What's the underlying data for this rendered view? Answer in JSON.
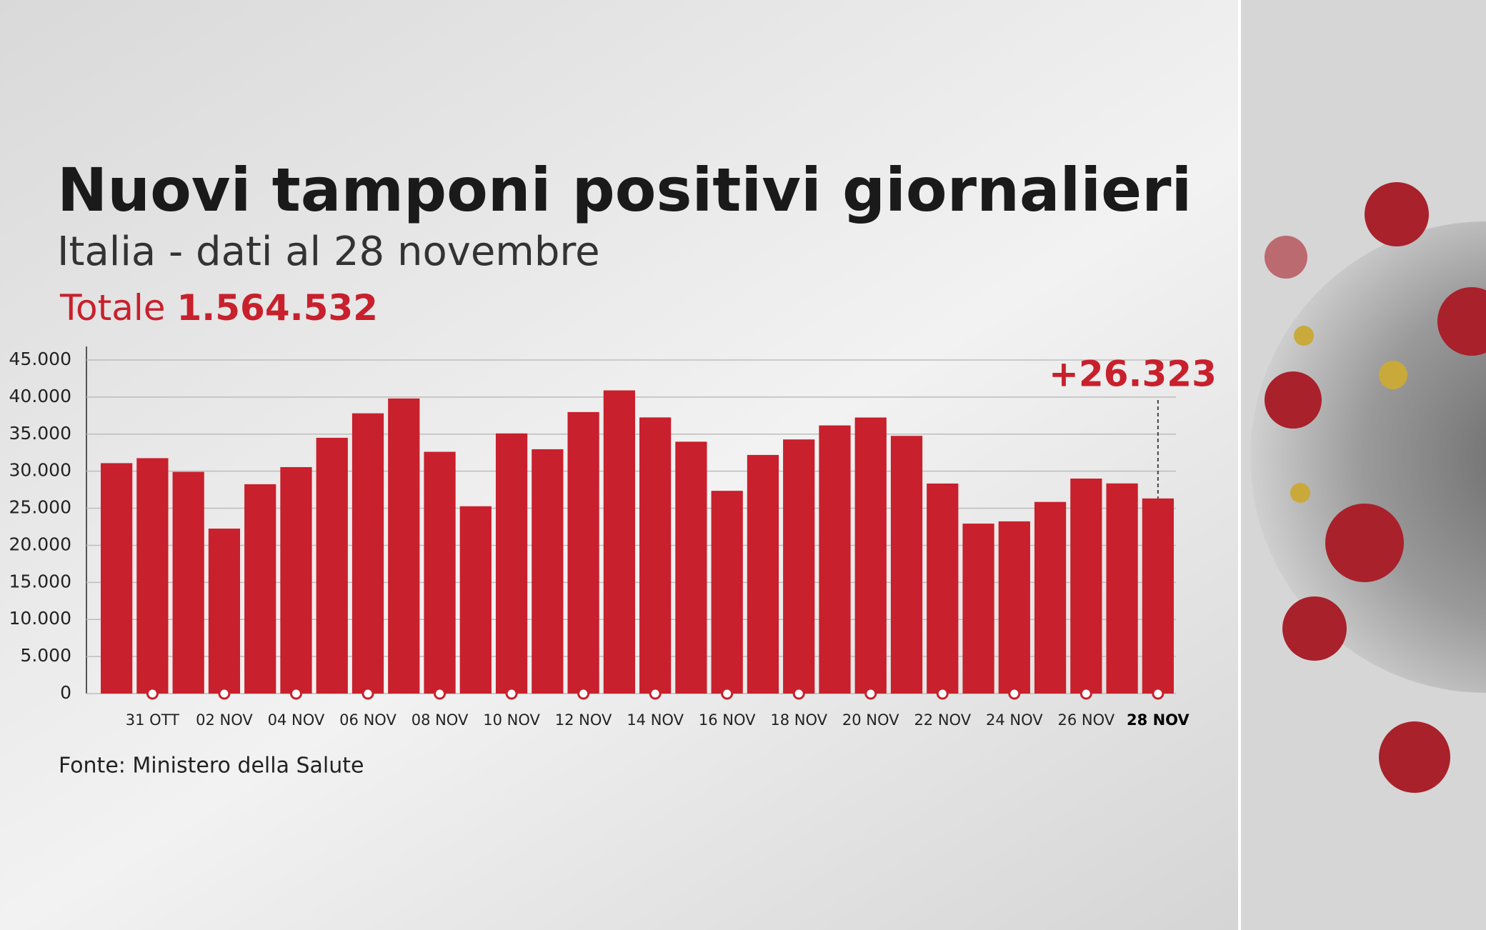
{
  "chart_data": {
    "type": "bar",
    "title": "Nuovi tamponi positivi giornalieri",
    "subtitle": "Italia - dati al 28 novembre",
    "total_label": "Totale",
    "total_value": "1.564.532",
    "source": "Fonte: Ministero della Salute",
    "annotation": "+26.323",
    "categories": [
      null,
      "31 OTT",
      null,
      "02 NOV",
      null,
      "04 NOV",
      null,
      "06 NOV",
      null,
      "08 NOV",
      null,
      "10 NOV",
      null,
      "12 NOV",
      null,
      "14 NOV",
      null,
      "16 NOV",
      null,
      "18 NOV",
      null,
      "20 NOV",
      null,
      "22 NOV",
      null,
      "24 NOV",
      null,
      "26 NOV",
      null,
      "28 NOV"
    ],
    "values": [
      31084,
      31758,
      29907,
      22253,
      28244,
      30550,
      34505,
      37809,
      39811,
      32616,
      25271,
      35098,
      32961,
      37978,
      40902,
      37255,
      33979,
      27354,
      32191,
      34283,
      36176,
      37242,
      34767,
      28337,
      22930,
      23232,
      25853,
      29003,
      28352,
      26323
    ],
    "color": "#c8202c",
    "ylim": [
      0,
      45000
    ],
    "yticks": [
      0,
      {
        "value": 5000,
        "label": "5.000"
      },
      {
        "value": 10000,
        "label": "10.000"
      },
      {
        "value": 15000,
        "label": "15.000"
      },
      {
        "value": 20000,
        "label": "20.000"
      },
      {
        "value": 25000,
        "label": "25.000"
      },
      {
        "value": 30000,
        "label": "30.000"
      },
      {
        "value": 35000,
        "label": "35.000"
      },
      {
        "value": 40000,
        "label": "40.000"
      },
      {
        "value": {
          "value": 45000,
          "label": "45.000"
        },
        "label": "45.000"
      }
    ],
    "grid": true
  }
}
